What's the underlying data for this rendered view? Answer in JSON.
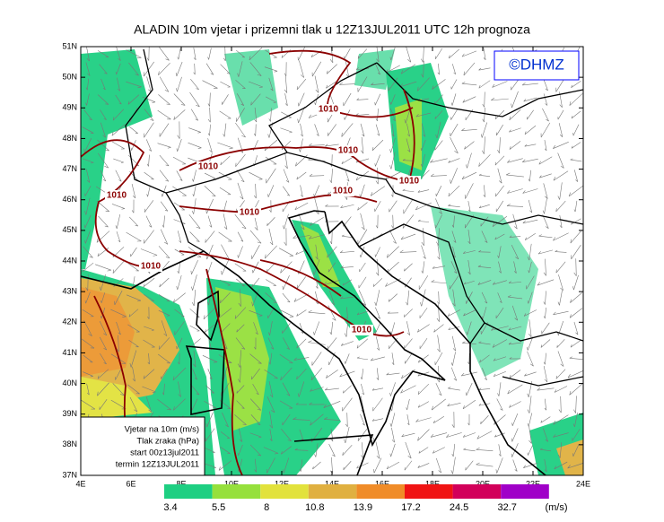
{
  "title": "ALADIN 10m vjetar i prizemni tlak u 12Z13JUL2011 UTC 12h prognoza",
  "logo": "©DHMZ",
  "lat_ticks": [
    {
      "value": 51,
      "label": "51N"
    },
    {
      "value": 50,
      "label": "50N"
    },
    {
      "value": 49,
      "label": "49N"
    },
    {
      "value": 48,
      "label": "48N"
    },
    {
      "value": 47,
      "label": "47N"
    },
    {
      "value": 46,
      "label": "46N"
    },
    {
      "value": 45,
      "label": "45N"
    },
    {
      "value": 44,
      "label": "44N"
    },
    {
      "value": 43,
      "label": "43N"
    },
    {
      "value": 42,
      "label": "42N"
    },
    {
      "value": 41,
      "label": "41N"
    },
    {
      "value": 40,
      "label": "40N"
    },
    {
      "value": 39,
      "label": "39N"
    },
    {
      "value": 38,
      "label": "38N"
    },
    {
      "value": 37,
      "label": "37N"
    }
  ],
  "lon_ticks": [
    {
      "value": 4,
      "label": "4E"
    },
    {
      "value": 6,
      "label": "6E"
    },
    {
      "value": 8,
      "label": "8E"
    },
    {
      "value": 10,
      "label": "10E"
    },
    {
      "value": 12,
      "label": "12E"
    },
    {
      "value": 14,
      "label": "14E"
    },
    {
      "value": 16,
      "label": "16E"
    },
    {
      "value": 18,
      "label": "18E"
    },
    {
      "value": 20,
      "label": "20E"
    },
    {
      "value": 22,
      "label": "22E"
    },
    {
      "value": 24,
      "label": "24E"
    }
  ],
  "isobar_labels": [
    "1010",
    "1010",
    "1010",
    "1010",
    "1010",
    "1010",
    "1010",
    "1010",
    "1010",
    "1010"
  ],
  "legend_box": {
    "lines": [
      "Vjetar na 10m (m/s)",
      "Tlak zraka (hPa)",
      "start 00z13jul2011",
      "termin 12Z13JUL2011"
    ]
  },
  "colorbar": {
    "values": [
      3.4,
      5.5,
      8,
      10.8,
      13.9,
      17.2,
      24.5,
      32.7
    ],
    "colors": [
      "#1ecf82",
      "#96e03c",
      "#e2e23c",
      "#e0b040",
      "#f08c28",
      "#f01414",
      "#d2005a",
      "#a000c8"
    ],
    "unit": "(m/s)"
  }
}
